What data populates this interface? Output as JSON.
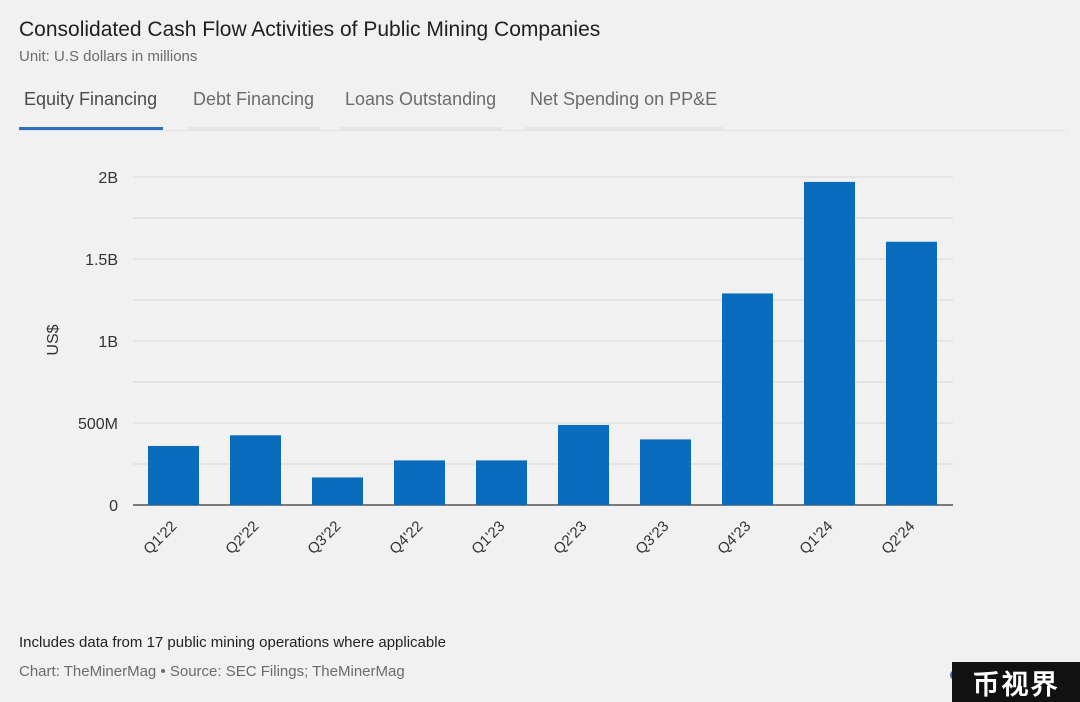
{
  "title": "Consolidated Cash Flow Activities of Public Mining Companies",
  "subtitle": "Unit: U.S dollars in millions",
  "tabs": [
    {
      "label": "Equity Financing",
      "active": true
    },
    {
      "label": "Debt Financing",
      "active": false
    },
    {
      "label": "Loans Outstanding",
      "active": false
    },
    {
      "label": "Net Spending on PP&E",
      "active": false
    }
  ],
  "colors": {
    "bar": "#0a6cbd",
    "accent": "#2e6fc4"
  },
  "chart_data": {
    "type": "bar",
    "categories": [
      "Q1'22",
      "Q2'22",
      "Q3'22",
      "Q4'22",
      "Q1'23",
      "Q2'23",
      "Q3'23",
      "Q4'23",
      "Q1'24",
      "Q2'24"
    ],
    "values": [
      360,
      425,
      168,
      272,
      272,
      488,
      400,
      1290,
      1970,
      1605
    ],
    "ylabel": "US$",
    "xlabel": "",
    "ylim": [
      0,
      2000
    ],
    "yticks": [
      0,
      500,
      1000,
      1500,
      2000
    ],
    "ytick_labels": [
      "0",
      "500M",
      "1B",
      "1.5B",
      "2B"
    ],
    "grid": true
  },
  "footnote": "Includes data from 17 public mining operations where applicable",
  "credit": "Chart: TheMinerMag • Source: SEC Filings; TheMinerMag",
  "watermark": "币视界"
}
